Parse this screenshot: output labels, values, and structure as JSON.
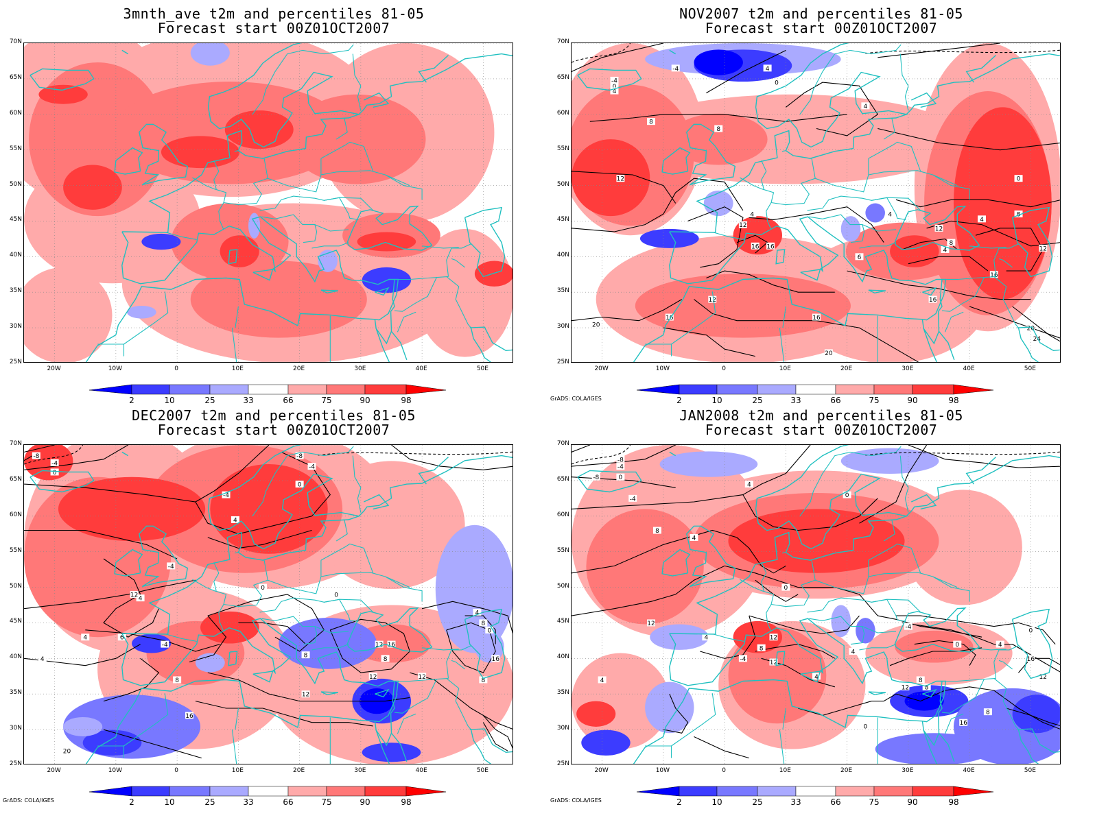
{
  "panels": [
    {
      "title1": "3mnth_ave t2m and percentiles 81-05",
      "title2": "Forecast start 00Z01OCT2007",
      "credit": ""
    },
    {
      "title1": "NOV2007 t2m and percentiles 81-05",
      "title2": "Forecast start 00Z01OCT2007",
      "credit": "GrADS: COLA/IGES"
    },
    {
      "title1": "DEC2007 t2m and percentiles 81-05",
      "title2": "Forecast start 00Z01OCT2007",
      "credit": "GrADS: COLA/IGES"
    },
    {
      "title1": "JAN2008 t2m and percentiles 81-05",
      "title2": "Forecast start 00Z01OCT2007",
      "credit": "GrADS: COLA/IGES"
    }
  ],
  "lat_labels": [
    "70N",
    "65N",
    "60N",
    "55N",
    "50N",
    "45N",
    "40N",
    "35N",
    "30N",
    "25N"
  ],
  "lon_labels": [
    "20W",
    "10W",
    "0",
    "10E",
    "20E",
    "30E",
    "40E",
    "50E"
  ],
  "colorbar": {
    "labels": [
      "2",
      "10",
      "25",
      "33",
      "66",
      "75",
      "90",
      "98"
    ],
    "colors": [
      "#0000ff",
      "#3c3cff",
      "#7878ff",
      "#aaaaff",
      "#ffffff",
      "#ffaaaa",
      "#ff7878",
      "#ff3c3c",
      "#ff0000"
    ]
  },
  "map_colors": {
    "coast": "#20c0c0",
    "grid": "#888888",
    "contour": "#000000"
  },
  "contour_labels": {
    "p1": [
      "-4",
      "-4",
      "0",
      "4",
      "4",
      "8",
      "8",
      "12",
      "0",
      "4",
      "0",
      "4",
      "4",
      "4",
      "6",
      "12",
      "12",
      "8",
      "4",
      "8",
      "12",
      "16",
      "16",
      "16",
      "12",
      "16",
      "20",
      "24",
      "20",
      "16",
      "16",
      "20"
    ],
    "p2": [
      "-8",
      "-4",
      "0",
      "-8",
      "-4",
      "0",
      "-4",
      "4",
      "4",
      "6",
      "12",
      "0",
      "-4",
      "4",
      "8",
      "12",
      "16",
      "8",
      "12",
      "12",
      "16",
      "0",
      "8",
      "4",
      "8",
      "-4",
      "0",
      "4",
      "8",
      "12",
      "16",
      "20"
    ],
    "p3": [
      "-8",
      "-4",
      "0",
      "-8",
      "-4",
      "0",
      "4",
      "4",
      "8",
      "12",
      "4",
      "0",
      "-4",
      "8",
      "12",
      "4",
      "12",
      "4",
      "-4",
      "0",
      "4",
      "8",
      "8",
      "16",
      "12",
      "0",
      "4",
      "8",
      "0",
      "12",
      "16"
    ]
  }
}
